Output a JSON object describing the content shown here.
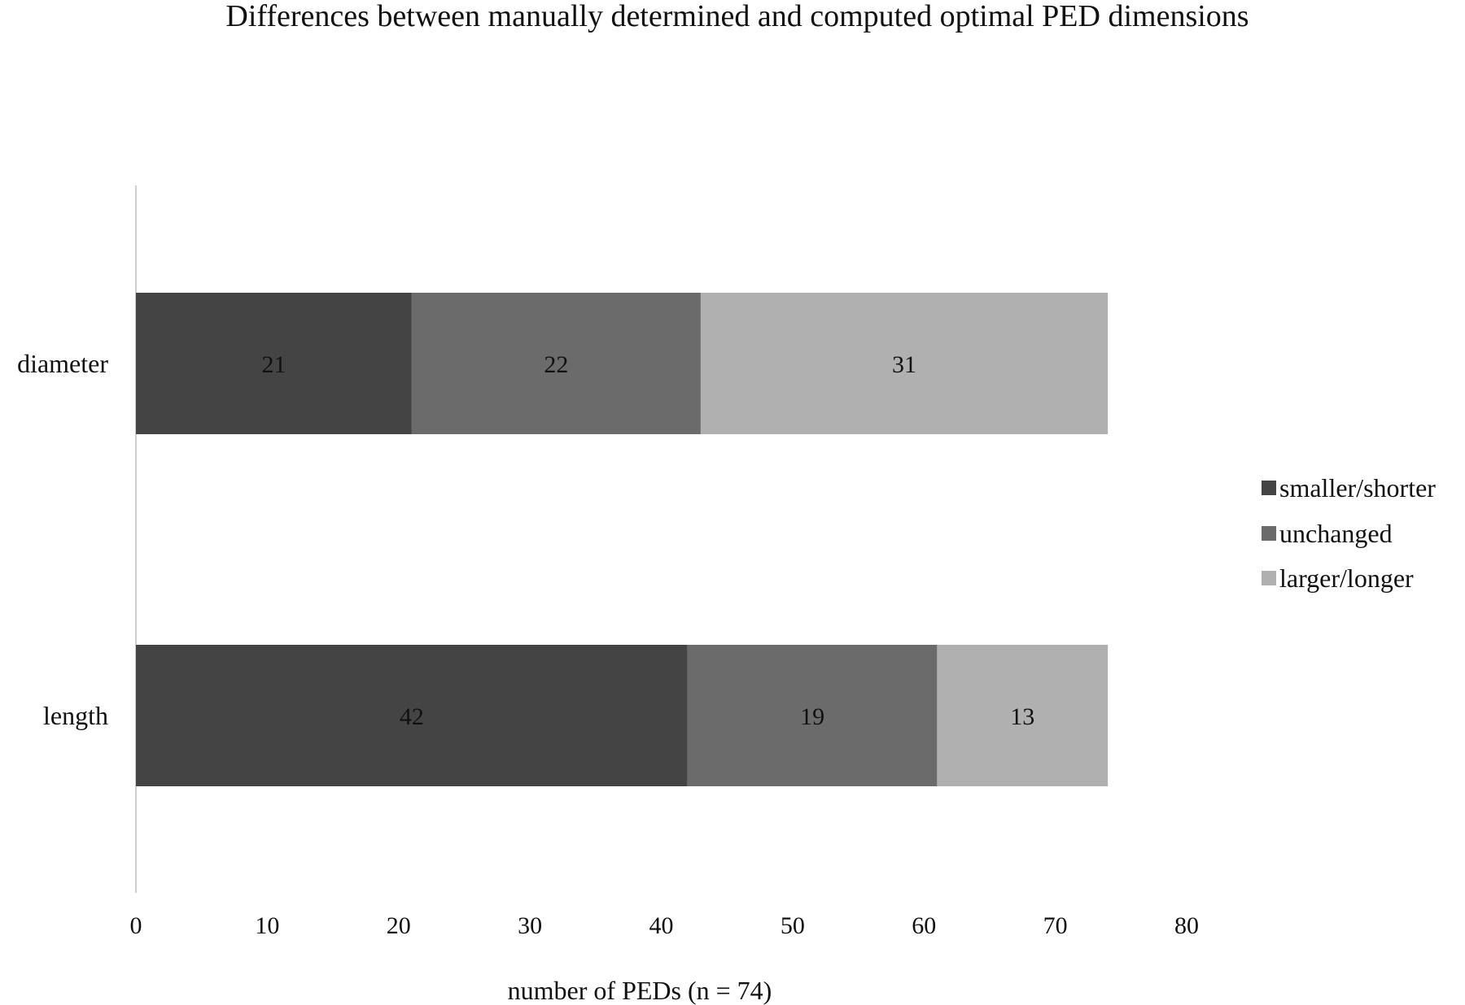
{
  "chart_data": {
    "type": "bar",
    "orientation": "horizontal",
    "stacked": true,
    "title": "Differences between manually  determined and computed optimal PED dimensions",
    "xlabel": "number  of PEDs  (n = 74)",
    "ylabel": "",
    "categories": [
      "diameter",
      "length"
    ],
    "series": [
      {
        "name": "smaller/shorter",
        "values": [
          21,
          42
        ],
        "color": "#444444"
      },
      {
        "name": "unchanged",
        "values": [
          22,
          19
        ],
        "color": "#6b6b6b"
      },
      {
        "name": "larger/longer",
        "values": [
          31,
          13
        ],
        "color": "#b0b0b0"
      }
    ],
    "xlim": [
      0,
      80
    ],
    "xticks": [
      0,
      10,
      20,
      30,
      40,
      50,
      60,
      70,
      80
    ],
    "grid": false,
    "legend_position": "right",
    "data_labels": true
  }
}
